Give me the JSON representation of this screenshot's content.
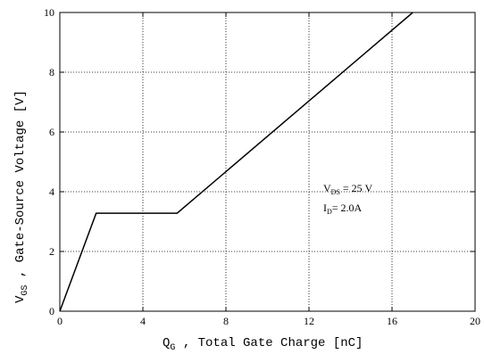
{
  "chart_data": {
    "type": "line",
    "xlabel": {
      "main": "Q",
      "sub": "G",
      "rest": " , Total Gate Charge  [nC]"
    },
    "ylabel": {
      "main": "V",
      "sub": "GS",
      "rest": " , Gate-Source Voltage  [V]"
    },
    "xlim": [
      0,
      20
    ],
    "ylim": [
      0,
      10
    ],
    "xticks": [
      0,
      4,
      8,
      12,
      16,
      20
    ],
    "yticks": [
      0,
      2,
      4,
      6,
      8,
      10
    ],
    "grid": true,
    "series": [
      {
        "x": [
          0,
          1.75,
          5.65,
          17.0
        ],
        "y": [
          0,
          3.28,
          3.28,
          10.0
        ]
      }
    ],
    "annotations": {
      "vds": {
        "main": "V",
        "sub": "DS",
        "rest": " = 25 V"
      },
      "id": {
        "main": "I",
        "sub": "D",
        "rest": "= 2.0A"
      }
    }
  }
}
